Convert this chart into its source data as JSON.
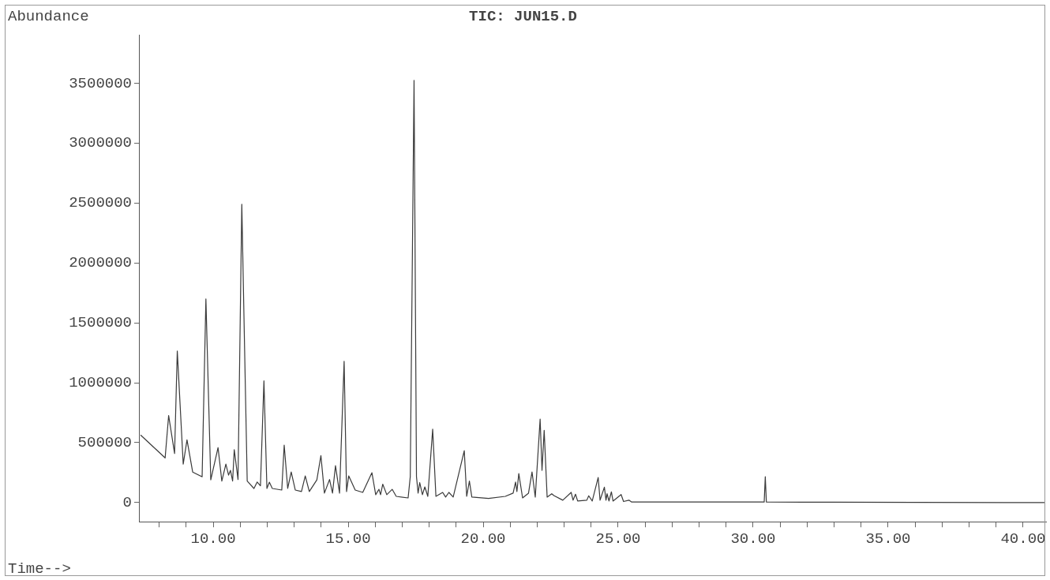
{
  "chart_data": {
    "type": "line",
    "title": "TIC: JUN15.D",
    "xlabel": "Time-->",
    "ylabel": "Abundance",
    "x": [
      7.31,
      8.22,
      8.35,
      8.57,
      8.67,
      8.89,
      9.03,
      9.24,
      9.59,
      9.73,
      9.91,
      10.18,
      10.32,
      10.47,
      10.57,
      10.64,
      10.72,
      10.78,
      10.92,
      11.06,
      11.14,
      11.26,
      11.51,
      11.63,
      11.75,
      11.88,
      11.99,
      12.08,
      12.19,
      12.54,
      12.63,
      12.76,
      12.89,
      13.04,
      13.27,
      13.41,
      13.56,
      13.84,
      13.99,
      14.12,
      14.31,
      14.42,
      14.53,
      14.68,
      14.85,
      14.94,
      15.02,
      15.26,
      15.54,
      15.88,
      16.02,
      16.14,
      16.2,
      16.28,
      16.43,
      16.63,
      16.78,
      17.22,
      17.3,
      17.44,
      17.53,
      17.59,
      17.65,
      17.75,
      17.84,
      17.95,
      18.13,
      18.25,
      18.5,
      18.61,
      18.73,
      18.89,
      19.3,
      19.39,
      19.49,
      19.58,
      20.2,
      20.82,
      21.11,
      21.2,
      21.25,
      21.32,
      21.46,
      21.68,
      21.81,
      21.93,
      22.11,
      22.18,
      22.26,
      22.37,
      22.54,
      22.62,
      22.95,
      23.26,
      23.33,
      23.42,
      23.5,
      23.84,
      23.91,
      24.04,
      24.26,
      24.33,
      24.49,
      24.55,
      24.59,
      24.66,
      24.75,
      24.81,
      25.11,
      25.2,
      25.4,
      25.5,
      28,
      30.41,
      30.45,
      30.49,
      33,
      36,
      40.79
    ],
    "values": [
      564000,
      373000,
      727000,
      410000,
      1265000,
      321000,
      524000,
      255000,
      216000,
      1700000,
      190000,
      459000,
      180000,
      321000,
      229000,
      269000,
      180000,
      442000,
      193000,
      2490000,
      1550000,
      180000,
      118000,
      172000,
      140000,
      1016000,
      118000,
      170000,
      118000,
      105000,
      480000,
      118000,
      256000,
      105000,
      92000,
      223000,
      92000,
      190000,
      393000,
      79000,
      193000,
      79000,
      308000,
      79000,
      1180000,
      92000,
      223000,
      105000,
      85000,
      249000,
      66000,
      111000,
      66000,
      154000,
      66000,
      111000,
      52000,
      39000,
      216000,
      3525000,
      216000,
      79000,
      167000,
      66000,
      131000,
      52000,
      613000,
      52000,
      85000,
      46000,
      85000,
      46000,
      434000,
      52000,
      180000,
      46000,
      35000,
      52000,
      79000,
      172000,
      92000,
      242000,
      39000,
      79000,
      256000,
      46000,
      697000,
      269000,
      603000,
      46000,
      74000,
      59000,
      20000,
      85000,
      20000,
      70000,
      13000,
      20000,
      57000,
      13000,
      210000,
      20000,
      129000,
      20000,
      74000,
      13000,
      90000,
      13000,
      67000,
      9000,
      20000,
      5000,
      5000,
      5000,
      216000,
      5000,
      3000,
      2000,
      0
    ],
    "color": "#3a3a3a",
    "marker": "none",
    "line_style": "solid",
    "grid": false,
    "legend": false,
    "xlim": [
      7.25,
      40.85
    ],
    "xticks": [
      {
        "value": 8,
        "label": null
      },
      {
        "value": 9,
        "label": null
      },
      {
        "value": 10,
        "label": "10.00"
      },
      {
        "value": 11,
        "label": null
      },
      {
        "value": 12,
        "label": null
      },
      {
        "value": 13,
        "label": null
      },
      {
        "value": 14,
        "label": null
      },
      {
        "value": 15,
        "label": "15.00"
      },
      {
        "value": 16,
        "label": null
      },
      {
        "value": 17,
        "label": null
      },
      {
        "value": 18,
        "label": null
      },
      {
        "value": 19,
        "label": null
      },
      {
        "value": 20,
        "label": "20.00"
      },
      {
        "value": 21,
        "label": null
      },
      {
        "value": 22,
        "label": null
      },
      {
        "value": 23,
        "label": null
      },
      {
        "value": 24,
        "label": null
      },
      {
        "value": 25,
        "label": "25.00"
      },
      {
        "value": 26,
        "label": null
      },
      {
        "value": 27,
        "label": null
      },
      {
        "value": 28,
        "label": null
      },
      {
        "value": 29,
        "label": null
      },
      {
        "value": 30,
        "label": "30.00"
      },
      {
        "value": 31,
        "label": null
      },
      {
        "value": 32,
        "label": null
      },
      {
        "value": 33,
        "label": null
      },
      {
        "value": 34,
        "label": null
      },
      {
        "value": 35,
        "label": "35.00"
      },
      {
        "value": 36,
        "label": null
      },
      {
        "value": 37,
        "label": null
      },
      {
        "value": 38,
        "label": null
      },
      {
        "value": 39,
        "label": null
      },
      {
        "value": 40,
        "label": "40.00"
      }
    ],
    "ylim": [
      -160000,
      3900000
    ],
    "yticks": [
      0,
      500000,
      1000000,
      1500000,
      2000000,
      2500000,
      3000000,
      3500000
    ]
  }
}
